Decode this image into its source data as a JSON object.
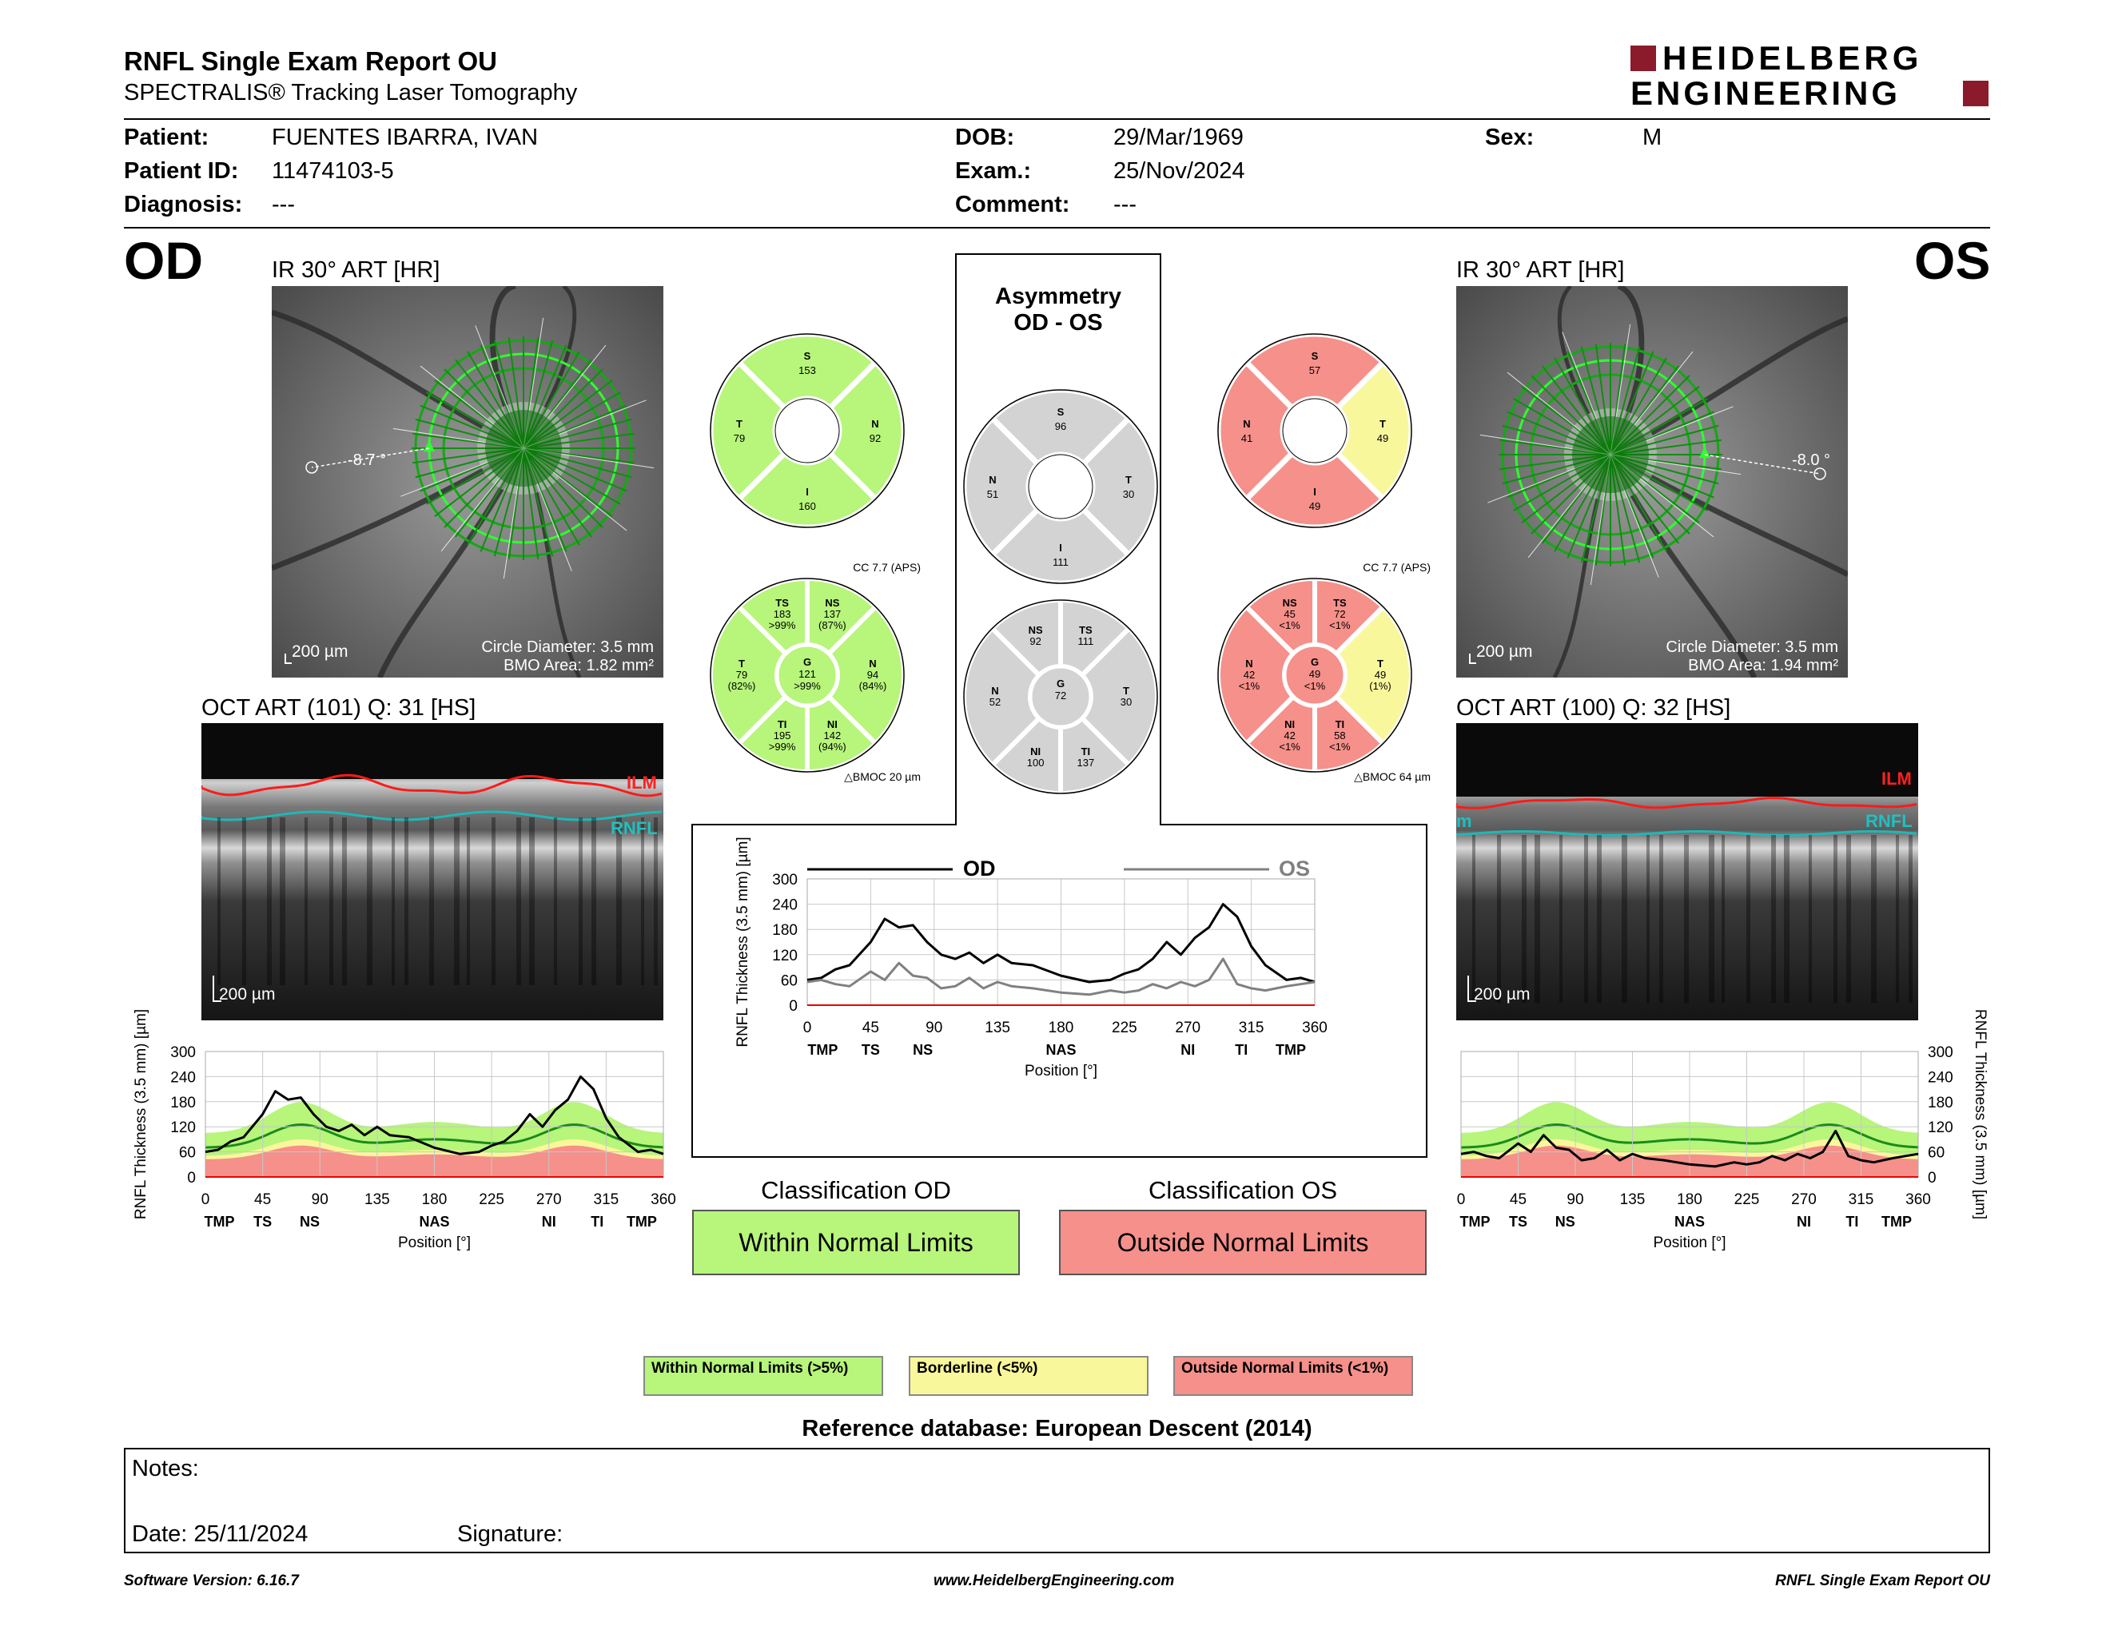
{
  "header": {
    "title": "RNFL Single Exam Report OU",
    "subtitle": "SPECTRALIS® Tracking Laser Tomography",
    "logo_line1": "HEIDELBERG",
    "logo_line2": "ENGINEERING"
  },
  "patient": {
    "patient_label": "Patient:",
    "patient_value": "FUENTES IBARRA, IVAN",
    "id_label": "Patient ID:",
    "id_value": "11474103-5",
    "diagnosis_label": "Diagnosis:",
    "diagnosis_value": "---",
    "dob_label": "DOB:",
    "dob_value": "29/Mar/1969",
    "exam_label": "Exam.:",
    "exam_value": "25/Nov/2024",
    "comment_label": "Comment:",
    "comment_value": "---",
    "sex_label": "Sex:",
    "sex_value": "M"
  },
  "od": {
    "eye": "OD",
    "ir_title": "IR 30° ART [HR]",
    "angle": "-8.7 °",
    "scale": "200 µm",
    "circle_diameter": "Circle Diameter: 3.5 mm",
    "bmo_area": "BMO Area: 1.82 mm²",
    "oct_title": "OCT ART (101) Q: 31 [HS]",
    "ilm": "ILM",
    "rnfl": "RNFL",
    "oct_scale": "200 µm",
    "quad": {
      "S": "153",
      "N": "92",
      "I": "160",
      "T": "79",
      "status": {
        "S": "green",
        "N": "green",
        "I": "green",
        "T": "green"
      }
    },
    "sectors": {
      "TS": {
        "v": "183",
        "p": ">99%",
        "c": "green"
      },
      "NS": {
        "v": "137",
        "p": "(87%)",
        "c": "green"
      },
      "T": {
        "v": "79",
        "p": "(82%)",
        "c": "green"
      },
      "G": {
        "v": "121",
        "p": ">99%",
        "c": "green"
      },
      "N": {
        "v": "94",
        "p": "(84%)",
        "c": "green"
      },
      "TI": {
        "v": "195",
        "p": ">99%",
        "c": "green"
      },
      "NI": {
        "v": "142",
        "p": "(94%)",
        "c": "green"
      }
    },
    "cc": "CC 7.7 (APS)",
    "bmoc": "BMOC 20 µm",
    "classification_title": "Classification OD",
    "classification": "Within Normal Limits"
  },
  "os": {
    "eye": "OS",
    "ir_title": "IR 30° ART [HR]",
    "angle": "-8.0 °",
    "scale": "200 µm",
    "circle_diameter": "Circle Diameter: 3.5 mm",
    "bmo_area": "BMO Area: 1.94 mm²",
    "oct_title": "OCT ART (100) Q: 32 [HS]",
    "ilm": "ILM",
    "rnfl": "RNFL",
    "m": "m",
    "oct_scale": "200 µm",
    "quad": {
      "S": "57",
      "T": "49",
      "I": "49",
      "N": "41",
      "status": {
        "S": "red",
        "T": "yellow",
        "I": "red",
        "N": "red"
      }
    },
    "sectors": {
      "NS": {
        "v": "45",
        "p": "<1%",
        "c": "red"
      },
      "TS": {
        "v": "72",
        "p": "<1%",
        "c": "red"
      },
      "N": {
        "v": "42",
        "p": "<1%",
        "c": "red"
      },
      "G": {
        "v": "49",
        "p": "<1%",
        "c": "red"
      },
      "T": {
        "v": "49",
        "p": "(1%)",
        "c": "yellow"
      },
      "NI": {
        "v": "42",
        "p": "<1%",
        "c": "red"
      },
      "TI": {
        "v": "58",
        "p": "<1%",
        "c": "red"
      }
    },
    "cc": "CC 7.7 (APS)",
    "bmoc": "BMOC 64 µm",
    "classification_title": "Classification OS",
    "classification": "Outside Normal Limits"
  },
  "asymmetry": {
    "title1": "Asymmetry",
    "title2": "OD - OS",
    "quad": {
      "S": "96",
      "N": "51",
      "T": "30",
      "I": "111"
    },
    "sectors": {
      "NS": "92",
      "TS": "111",
      "N": "52",
      "G": "72",
      "T": "30",
      "NI": "100",
      "TI": "137"
    }
  },
  "plot_axes": {
    "ylabel": "RNFL Thickness (3.5 mm) [µm]",
    "xlabel": "Position [°]",
    "yticks": [
      "0",
      "60",
      "120",
      "180",
      "240",
      "300"
    ],
    "xticks": [
      "0",
      "45",
      "90",
      "135",
      "180",
      "225",
      "270",
      "315",
      "360"
    ],
    "sectors": [
      "TMP",
      "TS",
      "NS",
      "NAS",
      "NI",
      "TI",
      "TMP"
    ],
    "sectors_asym": [
      "TMP",
      "TS",
      "NS",
      "NAS",
      "NI",
      "TI",
      "TMP"
    ],
    "od_legend": "OD",
    "os_legend": "OS"
  },
  "chart_data": [
    {
      "type": "line",
      "title": "",
      "xlabel": "Position [°]",
      "ylabel": "RNFL Thickness (3.5 mm) [µm]",
      "xlim": [
        0,
        360
      ],
      "ylim": [
        0,
        300
      ],
      "x": [
        0,
        10,
        20,
        30,
        45,
        55,
        65,
        75,
        85,
        95,
        105,
        115,
        125,
        135,
        145,
        160,
        180,
        200,
        215,
        225,
        235,
        245,
        255,
        265,
        275,
        285,
        295,
        305,
        315,
        325,
        340,
        350,
        360
      ],
      "series": [
        {
          "name": "OD",
          "values": [
            60,
            65,
            85,
            95,
            150,
            205,
            185,
            190,
            150,
            120,
            110,
            125,
            100,
            120,
            100,
            95,
            70,
            55,
            60,
            75,
            85,
            110,
            150,
            120,
            160,
            185,
            240,
            210,
            140,
            95,
            60,
            65,
            55
          ]
        }
      ]
    },
    {
      "type": "line",
      "title": "",
      "xlabel": "Position [°]",
      "ylabel": "RNFL Thickness (3.5 mm) [µm]",
      "xlim": [
        0,
        360
      ],
      "ylim": [
        0,
        300
      ],
      "x": [
        0,
        10,
        20,
        30,
        45,
        55,
        65,
        75,
        85,
        95,
        105,
        115,
        125,
        135,
        145,
        160,
        180,
        200,
        215,
        225,
        235,
        245,
        255,
        265,
        275,
        285,
        295,
        305,
        315,
        325,
        340,
        350,
        360
      ],
      "series": [
        {
          "name": "OS",
          "values": [
            55,
            60,
            50,
            45,
            80,
            60,
            100,
            70,
            65,
            40,
            45,
            65,
            40,
            55,
            45,
            40,
            30,
            25,
            35,
            30,
            35,
            50,
            40,
            55,
            45,
            60,
            110,
            50,
            40,
            35,
            45,
            50,
            55
          ]
        }
      ]
    },
    {
      "type": "line",
      "title": "",
      "xlabel": "Position [°]",
      "ylabel": "RNFL Thickness (3.5 mm) [µm]",
      "xlim": [
        0,
        360
      ],
      "ylim": [
        0,
        300
      ],
      "x": [
        0,
        10,
        20,
        30,
        45,
        55,
        65,
        75,
        85,
        95,
        105,
        115,
        125,
        135,
        145,
        160,
        180,
        200,
        215,
        225,
        235,
        245,
        255,
        265,
        275,
        285,
        295,
        305,
        315,
        325,
        340,
        350,
        360
      ],
      "series": [
        {
          "name": "OD",
          "values": [
            60,
            65,
            85,
            95,
            150,
            205,
            185,
            190,
            150,
            120,
            110,
            125,
            100,
            120,
            100,
            95,
            70,
            55,
            60,
            75,
            85,
            110,
            150,
            120,
            160,
            185,
            240,
            210,
            140,
            95,
            60,
            65,
            55
          ]
        },
        {
          "name": "OS",
          "values": [
            55,
            60,
            50,
            45,
            80,
            60,
            100,
            70,
            65,
            40,
            45,
            65,
            40,
            55,
            45,
            40,
            30,
            25,
            35,
            30,
            35,
            50,
            40,
            55,
            45,
            60,
            110,
            50,
            40,
            35,
            45,
            50,
            55
          ]
        }
      ]
    }
  ],
  "legend": {
    "green": "Within Normal Limits (>5%)",
    "yellow": "Borderline (<5%)",
    "red": "Outside Normal Limits (<1%)"
  },
  "reference": "Reference database: European Descent (2014)",
  "notes": {
    "notes_label": "Notes:",
    "date_label": "Date: 25/11/2024",
    "signature_label": "Signature:"
  },
  "footer": {
    "software": "Software Version: 6.16.7",
    "website": "www.HeidelbergEngineering.com",
    "report": "RNFL Single Exam Report OU"
  },
  "colors": {
    "green": "#b7f57b",
    "yellow": "#f9f79b",
    "red": "#f6908a",
    "gray": "#d3d3d3",
    "od_line": "#000000",
    "os_line": "#808080"
  }
}
